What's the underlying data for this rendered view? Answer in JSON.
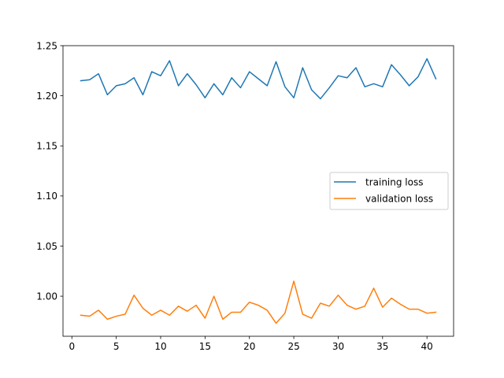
{
  "chart_data": {
    "type": "line",
    "title": "",
    "xlabel": "",
    "ylabel": "",
    "xlim": [
      -1,
      43
    ],
    "ylim": [
      0.96,
      1.25
    ],
    "xticks": [
      0,
      5,
      10,
      15,
      20,
      25,
      30,
      35,
      40
    ],
    "yticks": [
      1.0,
      1.05,
      1.1,
      1.15,
      1.2,
      1.25
    ],
    "grid": false,
    "legend_position": "center right",
    "x": [
      1,
      2,
      3,
      4,
      5,
      6,
      7,
      8,
      9,
      10,
      11,
      12,
      13,
      14,
      15,
      16,
      17,
      18,
      19,
      20,
      21,
      22,
      23,
      24,
      25,
      26,
      27,
      28,
      29,
      30,
      31,
      32,
      33,
      34,
      35,
      36,
      37,
      38,
      39,
      40,
      41
    ],
    "series": [
      {
        "name": "training loss",
        "color": "#1f77b4",
        "values": [
          1.215,
          1.216,
          1.222,
          1.201,
          1.21,
          1.212,
          1.218,
          1.201,
          1.224,
          1.22,
          1.235,
          1.21,
          1.222,
          1.211,
          1.198,
          1.212,
          1.201,
          1.218,
          1.208,
          1.224,
          1.217,
          1.21,
          1.234,
          1.209,
          1.198,
          1.228,
          1.206,
          1.197,
          1.208,
          1.22,
          1.218,
          1.228,
          1.209,
          1.212,
          1.209,
          1.231,
          1.221,
          1.21,
          1.219,
          1.237,
          1.217
        ]
      },
      {
        "name": "validation loss",
        "color": "#ff7f0e",
        "values": [
          0.981,
          0.98,
          0.986,
          0.977,
          0.98,
          0.982,
          1.001,
          0.988,
          0.981,
          0.986,
          0.981,
          0.99,
          0.985,
          0.991,
          0.978,
          1.0,
          0.977,
          0.984,
          0.984,
          0.994,
          0.991,
          0.986,
          0.973,
          0.983,
          1.015,
          0.982,
          0.978,
          0.993,
          0.99,
          1.001,
          0.991,
          0.987,
          0.99,
          1.008,
          0.989,
          0.998,
          0.992,
          0.987,
          0.987,
          0.983,
          0.984
        ]
      }
    ]
  }
}
